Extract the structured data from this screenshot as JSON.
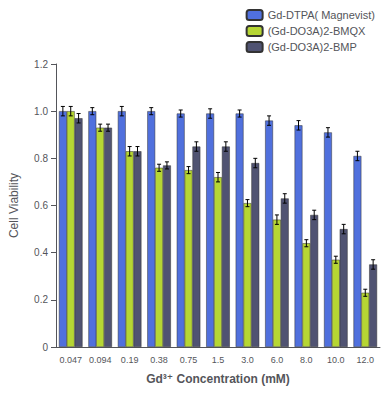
{
  "chart_data": {
    "type": "bar",
    "xlabel": "Gd³⁺ Concentration (mM)",
    "ylabel": "Cell Viability",
    "categories": [
      "0.047",
      "0.094",
      "0.19",
      "0.38",
      "0.75",
      "1.5",
      "3.0",
      "6.0",
      "8.0",
      "10.0",
      "12.0"
    ],
    "series": [
      {
        "name": "Gd-DTPA( Magnevist)",
        "values": [
          1.0,
          1.0,
          1.0,
          1.0,
          0.99,
          0.99,
          0.99,
          0.96,
          0.94,
          0.91,
          0.81
        ],
        "errors": [
          0.02,
          0.015,
          0.02,
          0.015,
          0.015,
          0.02,
          0.015,
          0.02,
          0.02,
          0.02,
          0.02
        ]
      },
      {
        "name": "(Gd-DO3A)2-BMQX",
        "values": [
          1.0,
          0.93,
          0.83,
          0.76,
          0.75,
          0.72,
          0.61,
          0.54,
          0.44,
          0.37,
          0.23
        ],
        "errors": [
          0.02,
          0.015,
          0.02,
          0.015,
          0.015,
          0.02,
          0.015,
          0.02,
          0.015,
          0.015,
          0.015
        ]
      },
      {
        "name": "(Gd-DO3A)2-BMP",
        "values": [
          0.97,
          0.93,
          0.83,
          0.77,
          0.85,
          0.85,
          0.78,
          0.63,
          0.56,
          0.5,
          0.35
        ],
        "errors": [
          0.02,
          0.015,
          0.02,
          0.015,
          0.02,
          0.02,
          0.02,
          0.02,
          0.02,
          0.02,
          0.02
        ]
      }
    ],
    "ylim": [
      0,
      1.2
    ],
    "yticks": [
      0,
      0.2,
      0.4,
      0.6,
      0.8,
      {
        "value": 1,
        "label": "1.0"
      },
      1.2
    ],
    "grid": false,
    "legend": "upper right"
  }
}
